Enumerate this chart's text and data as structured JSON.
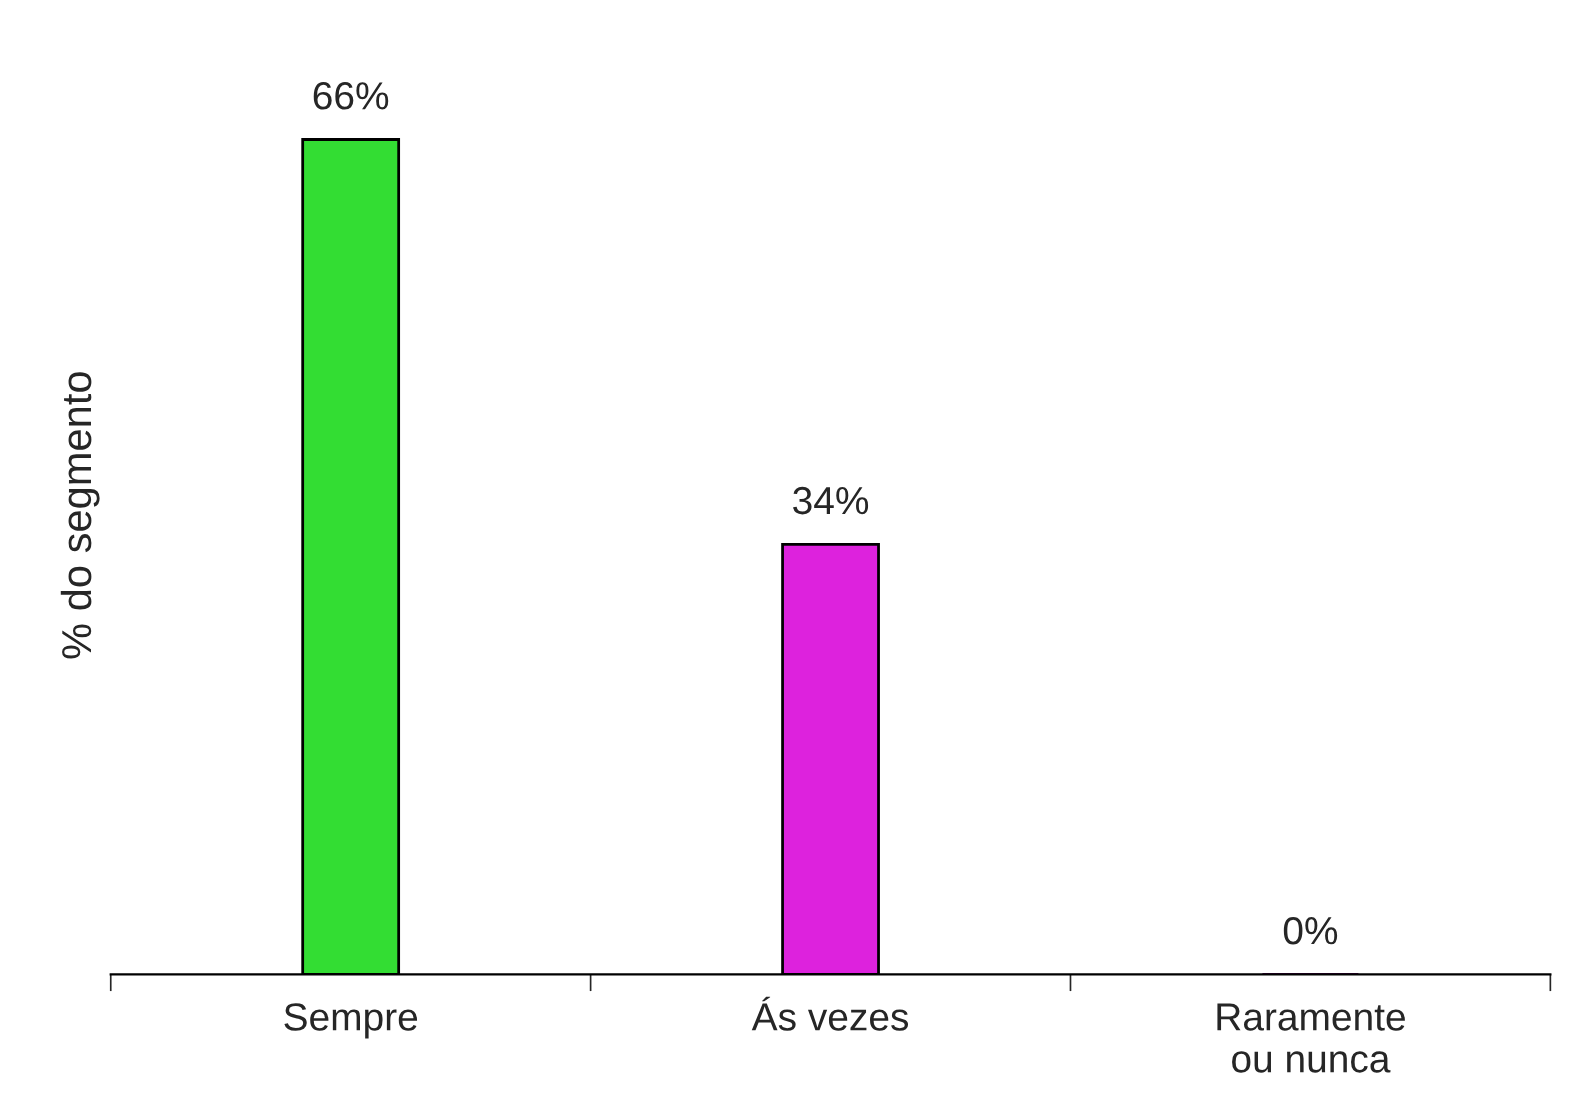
{
  "chart_data": {
    "type": "bar",
    "ylabel": "% do segmento",
    "categories": [
      "Sempre",
      "Ás vezes",
      "Raramente\nou nunca"
    ],
    "values": [
      66,
      34,
      0
    ],
    "colors": [
      "#33dd33",
      "#dd22dd",
      "#660066"
    ],
    "value_labels": [
      "66%",
      "34%",
      "0%"
    ],
    "tick_labels": "x",
    "grid": false
  }
}
